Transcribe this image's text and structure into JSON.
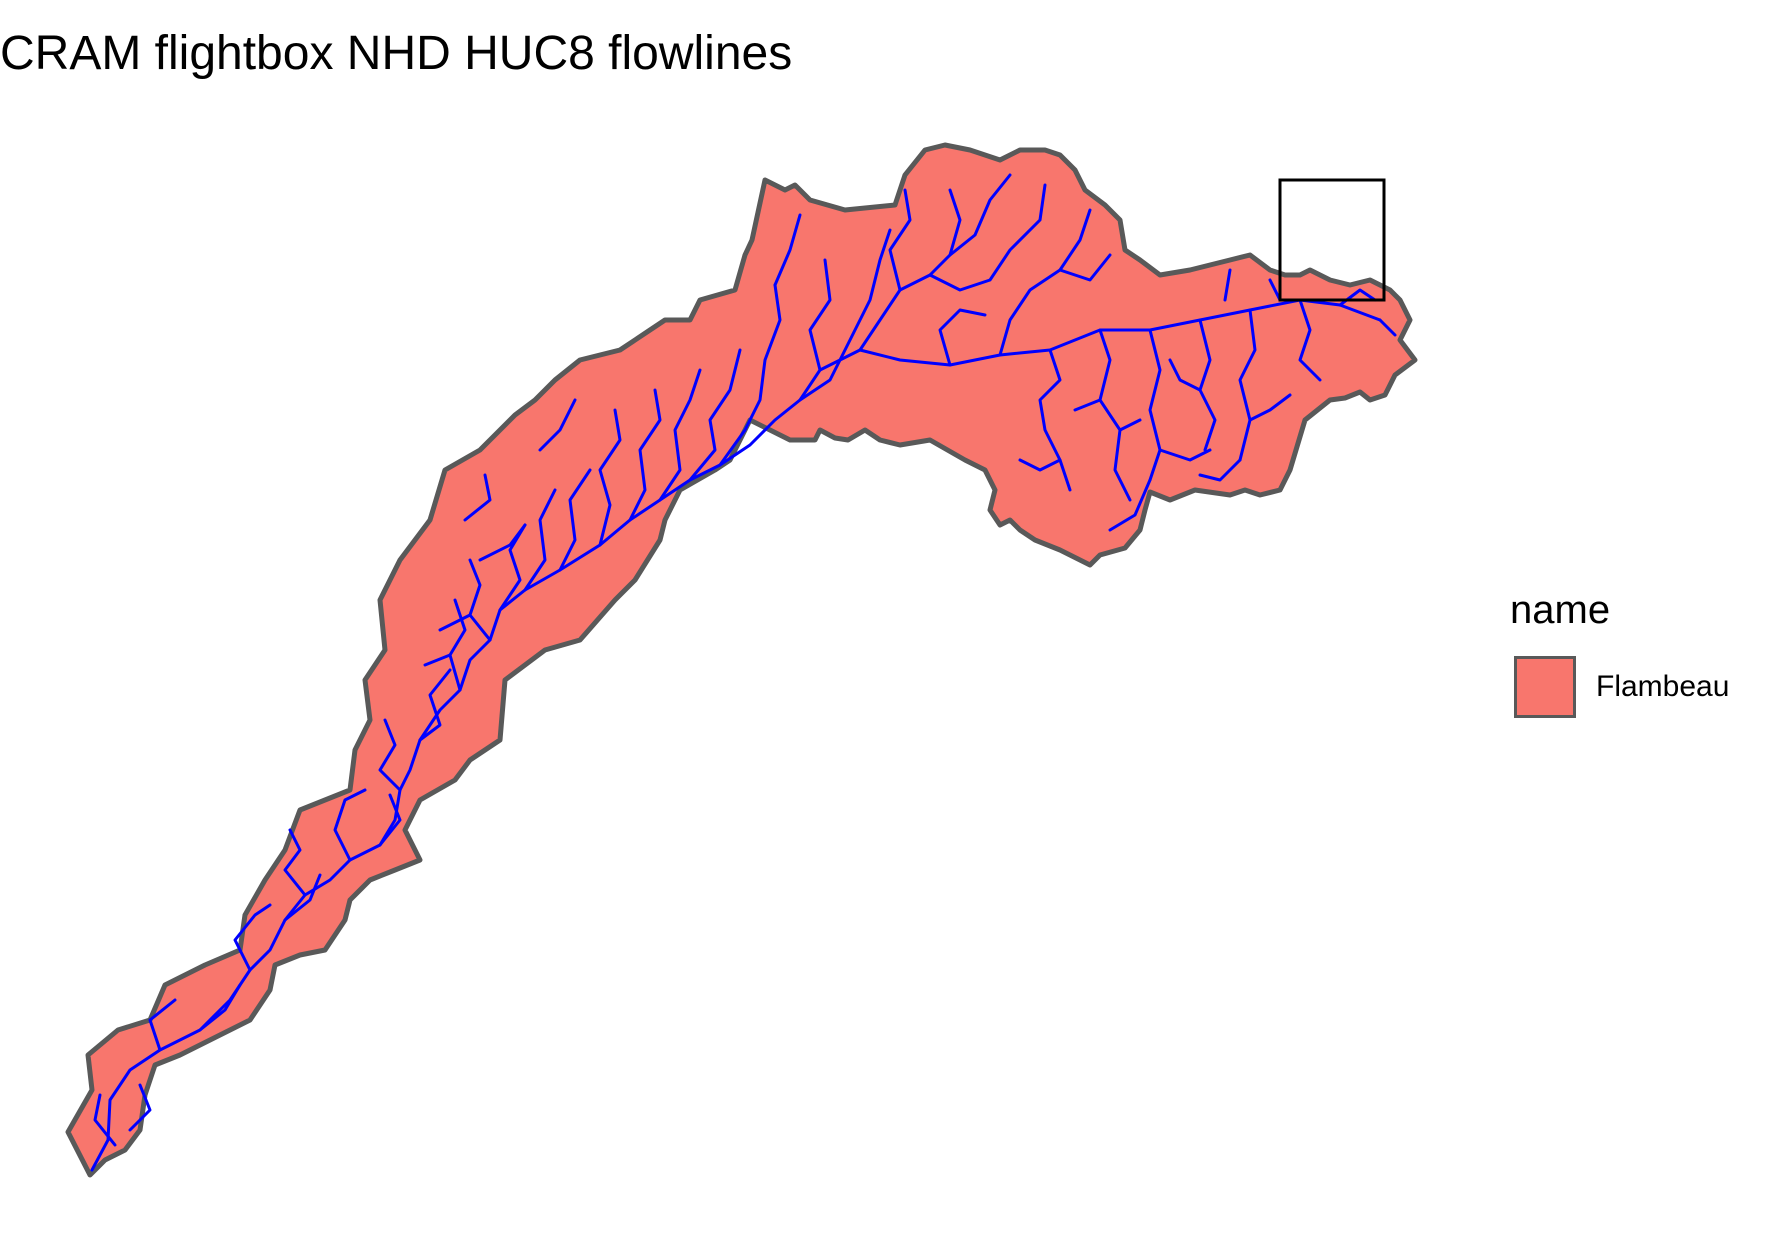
{
  "title": "CRAM flightbox NHD HUC8 flowlines",
  "colors": {
    "watershed_fill": "#F8766D",
    "watershed_border": "#595959",
    "flowlines": "#0000FF",
    "flightbox": "#000000"
  },
  "legend": {
    "title": "name",
    "items": [
      {
        "label": "Flambeau",
        "color": "#F8766D"
      }
    ]
  },
  "layers": [
    "watershed-polygon",
    "nhd-flowlines",
    "flightbox-outline"
  ]
}
